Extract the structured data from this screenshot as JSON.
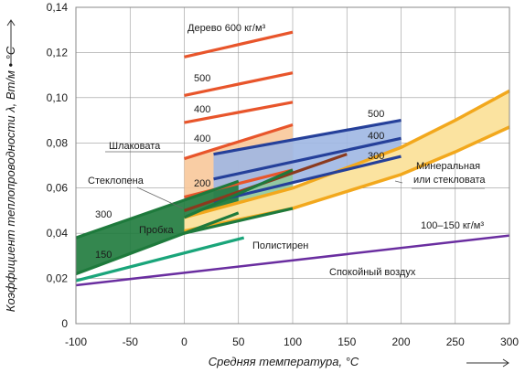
{
  "chart_data": {
    "type": "line",
    "xlabel": "Средняя температура, °С",
    "ylabel": "Коэффициент теплопроводности λ, Вт/м • °С",
    "xlim": [
      -100,
      300
    ],
    "ylim": [
      0,
      0.14
    ],
    "x_ticks": [
      "-100",
      "-50",
      "0",
      "50",
      "100",
      "150",
      "200",
      "250",
      "300"
    ],
    "y_ticks": [
      "0",
      "0,02",
      "0,04",
      "0,06",
      "0,08",
      "0,10",
      "0,12",
      "0,14"
    ],
    "grid": true,
    "colors": {
      "wood": "#e8552b",
      "wood_fill": "#f8c89a",
      "mineral": "#25409a",
      "mineral_fill": "#9fb7e3",
      "mineral_mid": "#8b3a1e",
      "glass": "#1e7a3c",
      "glass_fill": "#8fc99a",
      "cork": "#1e7a3c",
      "polystyrene": "#1aa57a",
      "wool": "#f2a81d",
      "wool_fill": "#fbe3a0",
      "air": "#6a2ea0",
      "grid": "#9a9a9a"
    },
    "series": [
      {
        "group": "wood",
        "x": [
          0,
          100
        ],
        "y": [
          0.118,
          0.129
        ]
      },
      {
        "group": "wood",
        "x": [
          0,
          100
        ],
        "y": [
          0.101,
          0.111
        ]
      },
      {
        "group": "wood",
        "x": [
          0,
          100
        ],
        "y": [
          0.089,
          0.098
        ]
      },
      {
        "group": "wood",
        "x": [
          0,
          100
        ],
        "y": [
          0.073,
          0.088
        ]
      },
      {
        "group": "wood",
        "x": [
          0,
          100
        ],
        "y": [
          0.056,
          0.068
        ]
      },
      {
        "group": "mineral",
        "x": [
          27,
          200
        ],
        "y": [
          0.075,
          0.09
        ]
      },
      {
        "group": "mineral",
        "x": [
          27,
          200
        ],
        "y": [
          0.064,
          0.082
        ]
      },
      {
        "group": "mineral",
        "x": [
          27,
          200
        ],
        "y": [
          0.054,
          0.074
        ]
      },
      {
        "group": "mineral_mid",
        "x": [
          0,
          150
        ],
        "y": [
          0.05,
          0.075
        ]
      },
      {
        "group": "glass",
        "x": [
          0,
          100
        ],
        "y": [
          0.047,
          0.068
        ]
      },
      {
        "group": "glass",
        "x": [
          0,
          100
        ],
        "y": [
          0.04,
          0.051
        ]
      },
      {
        "group": "cork",
        "x": [
          -100,
          50
        ],
        "y": [
          0.038,
          0.063
        ]
      },
      {
        "group": "cork",
        "x": [
          -100,
          50
        ],
        "y": [
          0.022,
          0.049
        ]
      },
      {
        "group": "polystyrene",
        "x": [
          -100,
          55
        ],
        "y": [
          0.019,
          0.038
        ]
      },
      {
        "group": "air",
        "x": [
          -100,
          300
        ],
        "y": [
          0.017,
          0.039
        ]
      }
    ],
    "bands": [
      {
        "group": "wood",
        "x": [
          0,
          100
        ],
        "upper": [
          0.073,
          0.088
        ],
        "lower": [
          0.056,
          0.068
        ]
      },
      {
        "group": "mineral",
        "x": [
          27,
          200
        ],
        "upper": [
          0.075,
          0.09
        ],
        "lower": [
          0.054,
          0.074
        ]
      },
      {
        "group": "glass",
        "x": [
          0,
          100
        ],
        "upper": [
          0.047,
          0.068
        ],
        "lower": [
          0.04,
          0.051
        ]
      },
      {
        "group": "cork",
        "x": [
          -100,
          50
        ],
        "upper": [
          0.038,
          0.063
        ],
        "lower": [
          0.022,
          0.049
        ]
      }
    ],
    "wool_upper": {
      "x": [
        0,
        100,
        200,
        250,
        300
      ],
      "y": [
        0.047,
        0.06,
        0.078,
        0.09,
        0.103
      ]
    },
    "wool_lower": {
      "x": [
        0,
        100,
        200,
        250,
        300
      ],
      "y": [
        0.041,
        0.051,
        0.066,
        0.076,
        0.087
      ]
    },
    "annotations": {
      "wood_title": "Дерево 600 кг/м³",
      "wood_500": "500",
      "wood_400a": "400",
      "wood_400b": "400",
      "wood_200": "200",
      "slag": "Шлаковата",
      "mineral_500": "500",
      "mineral_400": "400",
      "mineral_300": "300",
      "mineral_wool_1": "Минеральная",
      "mineral_wool_2": "или стекловата",
      "foamglass": "Стеклопена",
      "cork_300": "300",
      "cork_label": "Пробка",
      "cork_150": "150",
      "polystyrene": "Полистирен",
      "density_range": "100–150 кг/м³",
      "still_air": "Спокойный воздух"
    }
  }
}
